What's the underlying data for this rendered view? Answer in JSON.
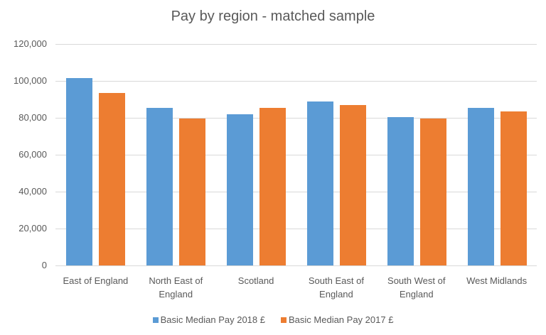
{
  "chart_data": {
    "type": "bar",
    "title": "Pay by region - matched sample",
    "xlabel": "",
    "ylabel": "",
    "ylim": [
      0,
      120000
    ],
    "yticks": [
      "0",
      "20,000",
      "40,000",
      "60,000",
      "80,000",
      "100,000",
      "120,000"
    ],
    "grid": true,
    "legend_position": "bottom",
    "categories": [
      "East of England",
      "North East of England",
      "Scotland",
      "South East of England",
      "South West of England",
      "West Midlands"
    ],
    "category_lines": [
      [
        "East of England"
      ],
      [
        "North East of",
        "England"
      ],
      [
        "Scotland"
      ],
      [
        "South East of",
        "England"
      ],
      [
        "South West of",
        "England"
      ],
      [
        "West Midlands"
      ]
    ],
    "series": [
      {
        "name": "Basic Median Pay 2018 £",
        "color": "#5b9bd5",
        "values": [
          101500,
          85500,
          81800,
          89000,
          80200,
          85200
        ]
      },
      {
        "name": "Basic Median Pay 2017 £",
        "color": "#ed7d31",
        "values": [
          93500,
          79500,
          85500,
          87000,
          79500,
          83300
        ]
      }
    ]
  }
}
